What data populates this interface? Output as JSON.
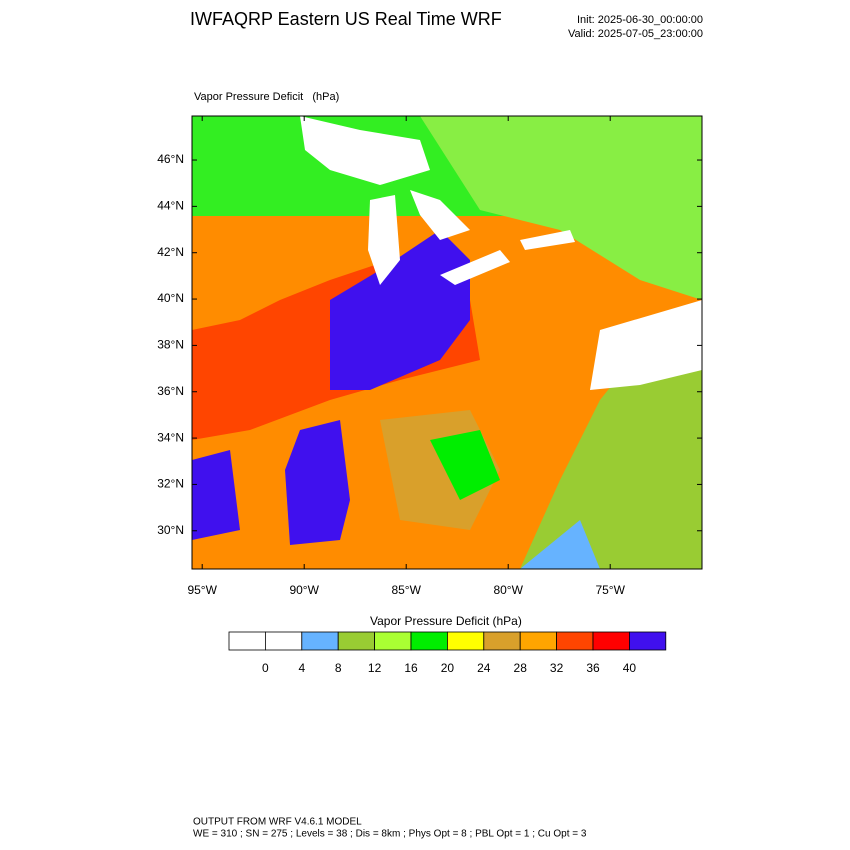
{
  "chart_data": {
    "type": "map",
    "title": "IWFAQRP Eastern US Real Time WRF",
    "init": "Init: 2025-06-30_00:00:00",
    "valid": "Valid: 2025-07-05_23:00:00",
    "subtitle": "Vapor Pressure Deficit   (hPa)",
    "xlim": [
      -95.5,
      -70.5
    ],
    "ylim": [
      28.35,
      47.9
    ],
    "xticks": [
      {
        "value": -95,
        "label": "95°W"
      },
      {
        "value": -90,
        "label": "90°W"
      },
      {
        "value": -85,
        "label": "85°W"
      },
      {
        "value": -80,
        "label": "80°W"
      },
      {
        "value": -75,
        "label": "75°W"
      }
    ],
    "yticks": [
      {
        "value": 30,
        "label": "30°N"
      },
      {
        "value": 32,
        "label": "32°N"
      },
      {
        "value": 34,
        "label": "34°N"
      },
      {
        "value": 36,
        "label": "36°N"
      },
      {
        "value": 38,
        "label": "38°N"
      },
      {
        "value": 40,
        "label": "40°N"
      },
      {
        "value": 42,
        "label": "42°N"
      },
      {
        "value": 44,
        "label": "44°N"
      },
      {
        "value": 46,
        "label": "46°N"
      }
    ],
    "colorbar": {
      "title": "Vapor Pressure Deficit (hPa)",
      "levels": [
        0,
        4,
        8,
        12,
        16,
        20,
        24,
        28,
        32,
        36,
        40
      ],
      "colors": [
        "#ffffff",
        "#ffffff",
        "#66b3ff",
        "#99cc33",
        "#aaff33",
        "#00ee00",
        "#ffff00",
        "#d9a02b",
        "#ffa500",
        "#ff4500",
        "#ff0000",
        "#4010ee"
      ]
    },
    "footer": [
      "OUTPUT FROM WRF V4.6.1 MODEL",
      "WE = 310 ; SN = 275 ; Levels = 38 ; Dis = 8km ; Phys Opt = 8 ; PBL Opt = 1 ; Cu Opt = 3"
    ]
  }
}
